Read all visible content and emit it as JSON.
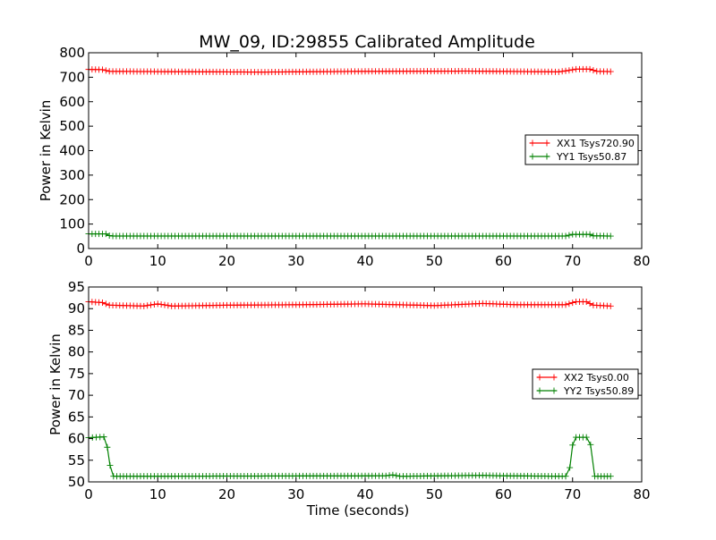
{
  "chart_data": [
    {
      "type": "line",
      "title": "MW_09, ID:29855 Calibrated Amplitude",
      "xlabel": "",
      "ylabel": "Power in Kelvin",
      "xlim": [
        0,
        80
      ],
      "ylim": [
        0,
        800
      ],
      "xticks": [
        0,
        10,
        20,
        30,
        40,
        50,
        60,
        70,
        80
      ],
      "yticks": [
        0,
        100,
        200,
        300,
        400,
        500,
        600,
        700,
        800
      ],
      "legend_position": "center-right",
      "series": [
        {
          "name": "XX1 Tsys720.90",
          "color": "#ff0000",
          "marker": "plus",
          "segments": [
            [
              0,
              732
            ],
            [
              2,
              731
            ],
            [
              3,
              724
            ],
            [
              10,
              723
            ],
            [
              25,
              721
            ],
            [
              40,
              724
            ],
            [
              55,
              725
            ],
            [
              68,
              722
            ],
            [
              69.5,
              728
            ],
            [
              70.5,
              733
            ],
            [
              72.5,
              733
            ],
            [
              73.5,
              724
            ],
            [
              75.5,
              723
            ]
          ]
        },
        {
          "name": "YY1 Tsys50.87",
          "color": "#008000",
          "marker": "plus",
          "segments": [
            [
              0,
              60
            ],
            [
              2.5,
              60
            ],
            [
              3,
              53
            ],
            [
              3.5,
              51
            ],
            [
              69,
              51
            ],
            [
              70,
              58
            ],
            [
              72.5,
              58
            ],
            [
              73,
              52
            ],
            [
              75.5,
              51
            ]
          ]
        }
      ]
    },
    {
      "type": "line",
      "title": "",
      "xlabel": "Time (seconds)",
      "ylabel": "Power in Kelvin",
      "xlim": [
        0,
        80
      ],
      "ylim": [
        50,
        95
      ],
      "xticks": [
        0,
        10,
        20,
        30,
        40,
        50,
        60,
        70,
        80
      ],
      "yticks": [
        50,
        55,
        60,
        65,
        70,
        75,
        80,
        85,
        90,
        95
      ],
      "legend_position": "center-right",
      "series": [
        {
          "name": "XX2 Tsys0.00",
          "color": "#ff0000",
          "marker": "plus",
          "segments": [
            [
              0,
              91.6
            ],
            [
              2,
              91.4
            ],
            [
              3,
              90.8
            ],
            [
              8,
              90.6
            ],
            [
              10,
              91.1
            ],
            [
              12,
              90.6
            ],
            [
              20,
              90.8
            ],
            [
              30,
              90.9
            ],
            [
              40,
              91.1
            ],
            [
              50,
              90.7
            ],
            [
              57,
              91.2
            ],
            [
              62,
              90.9
            ],
            [
              69,
              90.9
            ],
            [
              70.5,
              91.6
            ],
            [
              72,
              91.6
            ],
            [
              73,
              90.8
            ],
            [
              75.5,
              90.6
            ]
          ]
        },
        {
          "name": "YY2 Tsys50.89",
          "color": "#008000",
          "marker": "plus",
          "segments": [
            [
              0,
              60.2
            ],
            [
              2.2,
              60.4
            ],
            [
              2.7,
              58
            ],
            [
              3.1,
              53.8
            ],
            [
              3.6,
              51.3
            ],
            [
              6,
              51.3
            ],
            [
              43,
              51.4
            ],
            [
              44,
              51.6
            ],
            [
              45,
              51.3
            ],
            [
              57,
              51.5
            ],
            [
              60,
              51.4
            ],
            [
              69,
              51.3
            ],
            [
              69.6,
              53.3
            ],
            [
              70,
              58.5
            ],
            [
              70.5,
              60.3
            ],
            [
              72,
              60.3
            ],
            [
              72.6,
              58.6
            ],
            [
              73.2,
              51.3
            ],
            [
              75.5,
              51.3
            ]
          ]
        }
      ]
    }
  ]
}
